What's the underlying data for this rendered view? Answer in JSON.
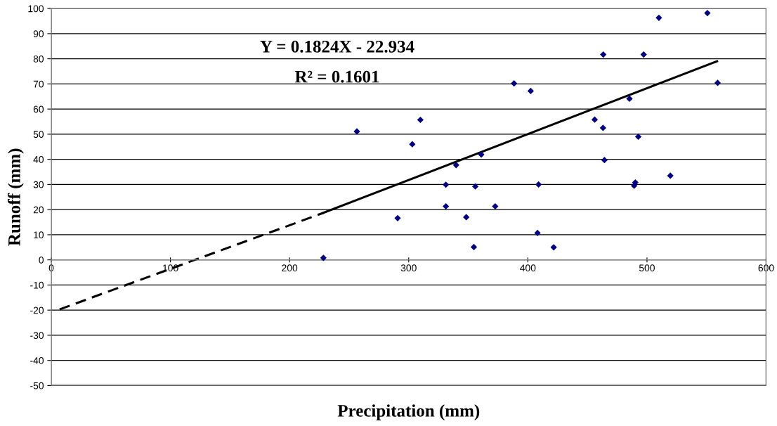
{
  "chart_data": {
    "type": "scatter",
    "xlabel": "Precipitation (mm)",
    "ylabel": "Runoff (mm)",
    "xlim": [
      0,
      600
    ],
    "xticks": [
      0,
      100,
      200,
      300,
      400,
      500,
      600
    ],
    "ylim": [
      -50,
      100
    ],
    "yticks": [
      -50,
      -40,
      -30,
      -20,
      -10,
      0,
      10,
      20,
      30,
      40,
      50,
      60,
      70,
      80,
      90,
      100
    ],
    "grid": "y",
    "legend": false,
    "marker": "diamond",
    "annotations": [
      "Y = 0.1824X - 22.934",
      "R² = 0.1601"
    ],
    "series": [
      {
        "color": "#000080",
        "x": [
          228.4,
          256.5,
          290.7,
          303,
          309.8,
          331.2,
          331.2,
          339.8,
          348.3,
          354.7,
          355.9,
          360.9,
          372.6,
          388.4,
          402.4,
          408.1,
          409,
          421.7,
          456.1,
          463.1,
          463.3,
          464.3,
          485.3,
          489.2,
          490.2,
          492.7,
          497.2,
          510,
          519.6,
          550.7,
          559.3
        ],
        "values": [
          0.8,
          51.1,
          16.6,
          46.0,
          55.7,
          21.3,
          29.9,
          37.7,
          17.0,
          5.1,
          29.2,
          41.9,
          21.3,
          70.2,
          67.2,
          10.7,
          30.0,
          5.0,
          55.8,
          52.5,
          81.7,
          39.7,
          64.1,
          29.5,
          30.8,
          49.0,
          81.7,
          96.3,
          33.5,
          98.2,
          70.4
        ]
      },
      {
        "type": "line",
        "color": "#000000",
        "line_style": "solid",
        "marker": "none",
        "x": [
          228.4,
          558.8
        ],
        "values": [
          18.7,
          79.0
        ]
      },
      {
        "type": "line",
        "color": "#000000",
        "line_style": "dashed",
        "marker": "none",
        "x": [
          7,
          228.4
        ],
        "values": [
          -19.7,
          18.7
        ]
      }
    ]
  }
}
